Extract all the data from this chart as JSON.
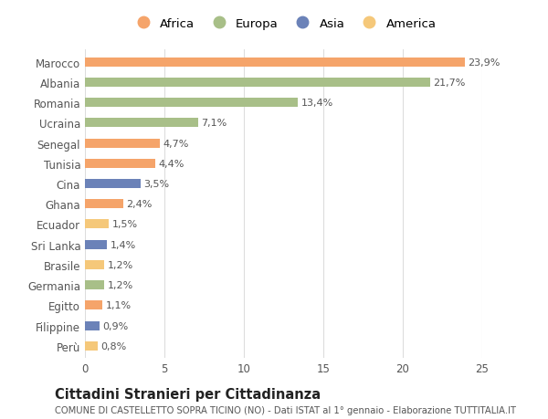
{
  "categories": [
    "Perù",
    "Filippine",
    "Egitto",
    "Germania",
    "Brasile",
    "Sri Lanka",
    "Ecuador",
    "Ghana",
    "Cina",
    "Tunisia",
    "Senegal",
    "Ucraina",
    "Romania",
    "Albania",
    "Marocco"
  ],
  "values": [
    0.8,
    0.9,
    1.1,
    1.2,
    1.2,
    1.4,
    1.5,
    2.4,
    3.5,
    4.4,
    4.7,
    7.1,
    13.4,
    21.7,
    23.9
  ],
  "labels": [
    "0,8%",
    "0,9%",
    "1,1%",
    "1,2%",
    "1,2%",
    "1,4%",
    "1,5%",
    "2,4%",
    "3,5%",
    "4,4%",
    "4,7%",
    "7,1%",
    "13,4%",
    "21,7%",
    "23,9%"
  ],
  "colors": [
    "#f5c87a",
    "#6b82b8",
    "#f5a46a",
    "#a8bf88",
    "#f5c87a",
    "#6b82b8",
    "#f5c87a",
    "#f5a46a",
    "#6b82b8",
    "#f5a46a",
    "#f5a46a",
    "#a8bf88",
    "#a8bf88",
    "#a8bf88",
    "#f5a46a"
  ],
  "legend_labels": [
    "Africa",
    "Europa",
    "Asia",
    "America"
  ],
  "legend_colors": [
    "#f5a46a",
    "#a8bf88",
    "#6b82b8",
    "#f5c87a"
  ],
  "title": "Cittadini Stranieri per Cittadinanza",
  "subtitle": "COMUNE DI CASTELLETTO SOPRA TICINO (NO) - Dati ISTAT al 1° gennaio - Elaborazione TUTTITALIA.IT",
  "xlim": [
    0,
    25
  ],
  "xticks": [
    0,
    5,
    10,
    15,
    20,
    25
  ],
  "background_color": "#ffffff",
  "grid_color": "#dddddd",
  "bar_height": 0.45,
  "title_fontsize": 10.5,
  "subtitle_fontsize": 7.2,
  "label_fontsize": 8,
  "tick_fontsize": 8.5,
  "legend_fontsize": 9.5
}
